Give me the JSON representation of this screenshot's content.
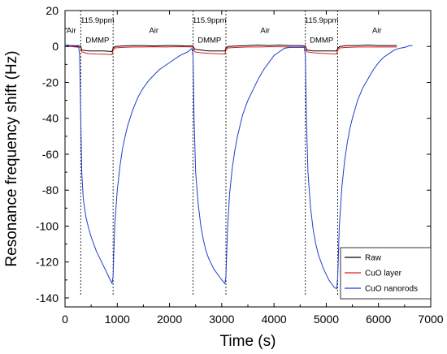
{
  "chart_data": {
    "type": "line",
    "title": "",
    "xlabel": "Time (s)",
    "ylabel": "Resonance frequency shift (Hz)",
    "xlim": [
      0,
      7000
    ],
    "ylim": [
      -145,
      20
    ],
    "x_ticks": [
      0,
      1000,
      2000,
      3000,
      4000,
      5000,
      6000,
      7000
    ],
    "y_ticks": [
      20,
      0,
      -20,
      -40,
      -60,
      -80,
      -100,
      -120,
      -140
    ],
    "grid": false,
    "legend_position": "bottom-right",
    "exposure_boundaries": [
      300,
      920,
      2450,
      3080,
      4600,
      5220
    ],
    "annotations": [
      {
        "text": "Air",
        "x": 120,
        "y": 9
      },
      {
        "text": "115.9ppm",
        "x": 620,
        "y": 14.5
      },
      {
        "text": "DMMP",
        "x": 620,
        "y": 3.5
      },
      {
        "text": "Air",
        "x": 1700,
        "y": 9
      },
      {
        "text": "115.9ppm",
        "x": 2765,
        "y": 14.5
      },
      {
        "text": "DMMP",
        "x": 2765,
        "y": 3.5
      },
      {
        "text": "Air",
        "x": 3830,
        "y": 9
      },
      {
        "text": "115.9ppm",
        "x": 4910,
        "y": 14.5
      },
      {
        "text": "DMMP",
        "x": 4910,
        "y": 3.5
      },
      {
        "text": "Air",
        "x": 5970,
        "y": 9
      }
    ],
    "series": [
      {
        "name": "Raw",
        "color": "#000000",
        "x": [
          0,
          100,
          200,
          300,
          320,
          450,
          600,
          750,
          900,
          920,
          960,
          1100,
          1300,
          1500,
          1700,
          1900,
          2100,
          2300,
          2450,
          2480,
          2600,
          2750,
          2900,
          3060,
          3080,
          3120,
          3300,
          3500,
          3700,
          3900,
          4100,
          4300,
          4500,
          4600,
          4630,
          4750,
          4900,
          5050,
          5200,
          5220,
          5260,
          5400,
          5600,
          5800,
          6000,
          6200,
          6350
        ],
        "y": [
          0,
          0.5,
          0,
          0.3,
          -2,
          -2.5,
          -2.5,
          -2.5,
          -2.8,
          -1,
          0,
          0.3,
          0.5,
          0.5,
          0.3,
          0.5,
          0.5,
          0.3,
          0.3,
          -1.5,
          -2,
          -2.5,
          -2.5,
          -2.5,
          -1,
          0,
          0.3,
          0.5,
          0.8,
          0.5,
          0.8,
          0.5,
          0.5,
          0.3,
          -2,
          -2.5,
          -2.5,
          -2.5,
          -2.5,
          -1,
          0,
          0.5,
          0.5,
          0.8,
          0.5,
          0.5,
          0.5
        ]
      },
      {
        "name": "CuO layer",
        "color": "#e31a1c",
        "x": [
          0,
          100,
          200,
          300,
          320,
          450,
          600,
          750,
          900,
          920,
          960,
          1100,
          1300,
          1500,
          1700,
          1900,
          2100,
          2300,
          2450,
          2480,
          2600,
          2750,
          2900,
          3060,
          3080,
          3120,
          3300,
          3500,
          3700,
          3900,
          4100,
          4300,
          4500,
          4600,
          4630,
          4750,
          4900,
          5050,
          5200,
          5220,
          5260,
          5400,
          5600,
          5800,
          6000,
          6200,
          6350
        ],
        "y": [
          0,
          0,
          -0.3,
          -0.5,
          -3,
          -4,
          -4.2,
          -4.3,
          -4.5,
          -2,
          -0.8,
          -0.5,
          -0.3,
          -0.3,
          -0.2,
          -0.3,
          -0.2,
          -0.2,
          -0.3,
          -3,
          -3.5,
          -3.8,
          -4,
          -4.2,
          -2,
          -0.8,
          -0.5,
          -0.3,
          -0.3,
          -0.2,
          -0.2,
          -0.3,
          -0.3,
          -0.3,
          -3,
          -3.5,
          -3.8,
          -4,
          -4.2,
          -2,
          -0.8,
          -0.5,
          -0.3,
          -0.3,
          -0.3,
          -0.3,
          -0.3
        ]
      },
      {
        "name": "CuO nanorods",
        "color": "#1f3fcf",
        "x": [
          0,
          100,
          200,
          260,
          280,
          300,
          320,
          350,
          400,
          450,
          500,
          550,
          600,
          650,
          700,
          750,
          800,
          850,
          900,
          920,
          950,
          1000,
          1050,
          1100,
          1150,
          1200,
          1300,
          1400,
          1500,
          1600,
          1800,
          2000,
          2200,
          2350,
          2430,
          2450,
          2470,
          2500,
          2550,
          2600,
          2650,
          2700,
          2750,
          2800,
          2850,
          2900,
          2950,
          3000,
          3060,
          3080,
          3110,
          3150,
          3200,
          3250,
          3300,
          3400,
          3500,
          3600,
          3700,
          3800,
          3900,
          4000,
          4100,
          4200,
          4300,
          4450,
          4580,
          4600,
          4620,
          4650,
          4700,
          4750,
          4800,
          4850,
          4900,
          4950,
          5000,
          5050,
          5100,
          5150,
          5200,
          5220,
          5250,
          5300,
          5350,
          5400,
          5450,
          5500,
          5600,
          5700,
          5800,
          5900,
          6000,
          6100,
          6200,
          6300,
          6400,
          6500,
          6600,
          6650
        ],
        "y": [
          1,
          0.5,
          0.5,
          0.5,
          -5,
          -38,
          -70,
          -85,
          -95,
          -101,
          -106,
          -110,
          -114,
          -117,
          -120,
          -123,
          -126,
          -129,
          -132,
          -128,
          -100,
          -80,
          -67,
          -57,
          -50,
          -44,
          -35,
          -28,
          -23,
          -19,
          -13,
          -9,
          -5,
          -3,
          -1,
          -5,
          -40,
          -70,
          -88,
          -100,
          -108,
          -114,
          -118,
          -121,
          -124,
          -126,
          -128,
          -130,
          -132,
          -128,
          -102,
          -82,
          -68,
          -58,
          -50,
          -38,
          -30,
          -24,
          -18,
          -13,
          -9,
          -5,
          -3,
          -1,
          -0.5,
          -0.5,
          -0.5,
          -5,
          -40,
          -70,
          -90,
          -102,
          -110,
          -116,
          -120,
          -124,
          -127,
          -130,
          -132,
          -134,
          -135,
          -128,
          -100,
          -78,
          -64,
          -54,
          -46,
          -40,
          -30,
          -23,
          -18,
          -13,
          -9,
          -6,
          -4,
          -2,
          -1,
          -0.5,
          0.5,
          0.5
        ]
      }
    ]
  }
}
